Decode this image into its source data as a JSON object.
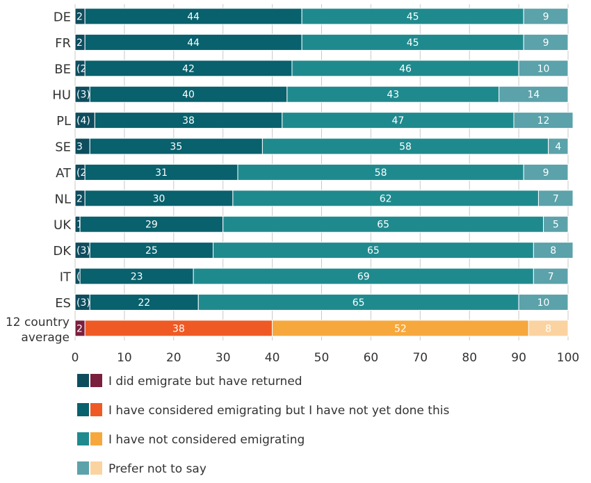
{
  "chart_data": {
    "type": "bar",
    "orientation": "horizontal",
    "stacked": true,
    "categories": [
      "DE",
      "FR",
      "BE",
      "HU",
      "PL",
      "SE",
      "AT",
      "NL",
      "UK",
      "DK",
      "IT",
      "ES",
      "12 country average"
    ],
    "series": [
      {
        "name": "I did emigrate but have returned",
        "values": [
          2,
          2,
          2,
          3,
          4,
          3,
          2,
          2,
          1,
          3,
          1,
          3,
          2
        ],
        "labels": [
          "2",
          "2",
          "(2)",
          "(3)",
          "(4)",
          "3",
          "(2)",
          "2",
          "1",
          "(3)",
          "(1)",
          "(3)",
          "2"
        ]
      },
      {
        "name": "I have considered emigrating but I have not yet done this",
        "values": [
          44,
          44,
          42,
          40,
          38,
          35,
          31,
          30,
          29,
          25,
          23,
          22,
          38
        ],
        "labels": [
          "44",
          "44",
          "42",
          "40",
          "38",
          "35",
          "31",
          "30",
          "29",
          "25",
          "23",
          "22",
          "38"
        ]
      },
      {
        "name": "I have not considered emigrating",
        "values": [
          45,
          45,
          46,
          43,
          47,
          58,
          58,
          62,
          65,
          65,
          69,
          65,
          52
        ],
        "labels": [
          "45",
          "45",
          "46",
          "43",
          "47",
          "58",
          "58",
          "62",
          "65",
          "65",
          "69",
          "65",
          "52"
        ]
      },
      {
        "name": "Prefer not to say",
        "values": [
          9,
          9,
          10,
          14,
          12,
          4,
          9,
          7,
          5,
          8,
          7,
          10,
          8
        ],
        "labels": [
          "9",
          "9",
          "10",
          "14",
          "12",
          "4",
          "9",
          "7",
          "5",
          "8",
          "7",
          "10",
          "8"
        ]
      }
    ],
    "xlim": [
      0,
      100
    ],
    "xticks": [
      0,
      10,
      20,
      30,
      40,
      50,
      60,
      70,
      80,
      90,
      100
    ],
    "grid": true,
    "legend_position": "bottom",
    "colors": {
      "country": [
        "#0d4d5e",
        "#08616d",
        "#1f8a8e",
        "#5ba2aa"
      ],
      "average": [
        "#7a1f3d",
        "#ef5a24",
        "#f6a83c",
        "#fbd3a0"
      ]
    }
  }
}
